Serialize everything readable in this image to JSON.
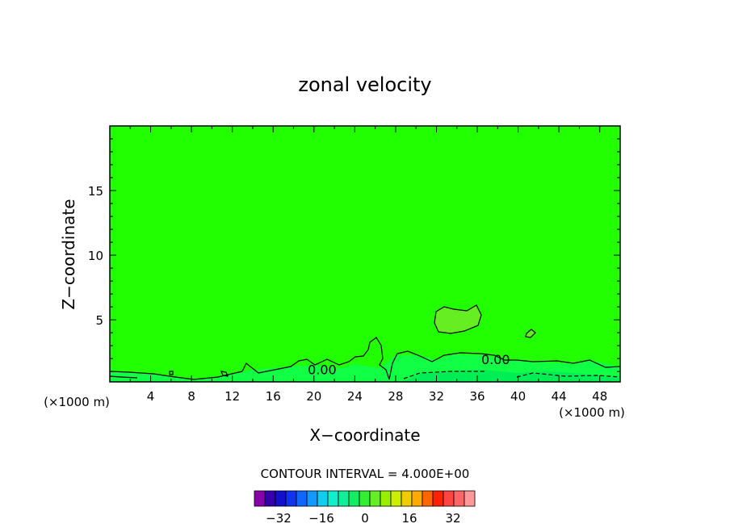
{
  "chart_data": {
    "type": "contour",
    "title": "zonal velocity",
    "xlabel": "X−coordinate",
    "ylabel": "Z−coordinate",
    "x_unit_left": "(×1000 m)",
    "x_unit_right": "(×1000 m)",
    "xlim": [
      0,
      50
    ],
    "ylim": [
      0.2,
      20
    ],
    "x_ticks": [
      4,
      8,
      12,
      16,
      20,
      24,
      28,
      32,
      36,
      40,
      44,
      48
    ],
    "y_ticks": [
      5,
      10,
      15
    ],
    "background_level_color": "#22ff00",
    "contour_labels": [
      {
        "text": "0.00",
        "x": 20.8,
        "z": 1.1
      },
      {
        "text": "0.00",
        "x": 37.8,
        "z": 1.9
      }
    ],
    "regions": [
      {
        "name": "positive-blob",
        "color": "#66ee22",
        "x_range": [
          31,
          36.5
        ],
        "z_range": [
          3.7,
          6.1
        ]
      },
      {
        "name": "small-blob",
        "color": "#66ee22",
        "x_range": [
          40.2,
          41.2
        ],
        "z_range": [
          3.5,
          4.2
        ]
      },
      {
        "name": "near-zero-band",
        "color": "#11ff44",
        "x_range": [
          0,
          50
        ],
        "z_range": [
          0.2,
          2.3
        ]
      }
    ],
    "grid": false,
    "legend": {
      "label": "CONTOUR INTERVAL = 4.000E+00",
      "tick_labels": [
        "−32",
        "−16",
        "0",
        "16",
        "32"
      ],
      "colors": [
        "#8800aa",
        "#3300aa",
        "#1111cc",
        "#1133ee",
        "#1166ff",
        "#1199ff",
        "#11ccee",
        "#11eecc",
        "#11ee99",
        "#11ee66",
        "#33ee33",
        "#66ee22",
        "#99ee00",
        "#ccee00",
        "#eecc00",
        "#ffaa00",
        "#ff6600",
        "#ff2200",
        "#ff4444",
        "#ff6666",
        "#ff9999"
      ]
    }
  }
}
